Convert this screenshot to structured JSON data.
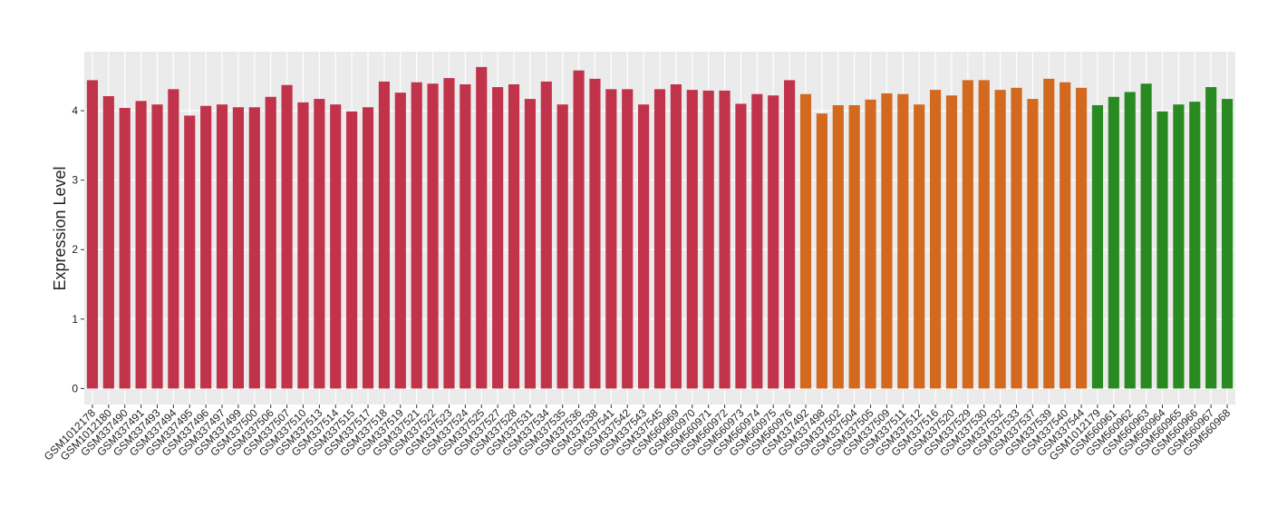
{
  "chart_data": {
    "type": "bar",
    "y_label": "Expression Level",
    "categories": [
      "GSM1012178",
      "GSM1012180",
      "GSM337490",
      "GSM337491",
      "GSM337493",
      "GSM337494",
      "GSM337495",
      "GSM337496",
      "GSM337497",
      "GSM337499",
      "GSM337500",
      "GSM337506",
      "GSM337507",
      "GSM337510",
      "GSM337513",
      "GSM337514",
      "GSM337515",
      "GSM337517",
      "GSM337518",
      "GSM337519",
      "GSM337521",
      "GSM337522",
      "GSM337523",
      "GSM337524",
      "GSM337525",
      "GSM337527",
      "GSM337528",
      "GSM337531",
      "GSM337534",
      "GSM337535",
      "GSM337536",
      "GSM337538",
      "GSM337541",
      "GSM337542",
      "GSM337543",
      "GSM337545",
      "GSM560969",
      "GSM560970",
      "GSM560971",
      "GSM560972",
      "GSM560973",
      "GSM560974",
      "GSM560975",
      "GSM560976",
      "GSM337492",
      "GSM337498",
      "GSM337502",
      "GSM337504",
      "GSM337505",
      "GSM337509",
      "GSM337511",
      "GSM337512",
      "GSM337516",
      "GSM337520",
      "GSM337529",
      "GSM337530",
      "GSM337532",
      "GSM337533",
      "GSM337537",
      "GSM337539",
      "GSM337540",
      "GSM337544",
      "GSM1012179",
      "GSM560961",
      "GSM560962",
      "GSM560963",
      "GSM560964",
      "GSM560965",
      "GSM560966",
      "GSM560967",
      "GSM560968"
    ],
    "values": [
      4.44,
      4.21,
      4.04,
      4.14,
      4.09,
      4.31,
      3.93,
      4.07,
      4.09,
      4.05,
      4.05,
      4.2,
      4.37,
      4.12,
      4.17,
      4.09,
      3.99,
      4.05,
      4.42,
      4.26,
      4.41,
      4.39,
      4.47,
      4.38,
      4.63,
      4.34,
      4.38,
      4.17,
      4.42,
      4.09,
      4.58,
      4.46,
      4.31,
      4.31,
      4.09,
      4.31,
      4.38,
      4.3,
      4.29,
      4.29,
      4.1,
      4.24,
      4.22,
      4.44,
      4.24,
      3.96,
      4.08,
      4.08,
      4.16,
      4.25,
      4.24,
      4.09,
      4.3,
      4.22,
      4.44,
      4.44,
      4.3,
      4.33,
      4.17,
      4.46,
      4.41,
      4.33,
      4.08,
      4.2,
      4.27,
      4.39,
      3.99,
      4.09,
      4.13,
      4.34,
      4.17
    ],
    "colors": [
      "#c1334b",
      "#c1334b",
      "#c1334b",
      "#c1334b",
      "#c1334b",
      "#c1334b",
      "#c1334b",
      "#c1334b",
      "#c1334b",
      "#c1334b",
      "#c1334b",
      "#c1334b",
      "#c1334b",
      "#c1334b",
      "#c1334b",
      "#c1334b",
      "#c1334b",
      "#c1334b",
      "#c1334b",
      "#c1334b",
      "#c1334b",
      "#c1334b",
      "#c1334b",
      "#c1334b",
      "#c1334b",
      "#c1334b",
      "#c1334b",
      "#c1334b",
      "#c1334b",
      "#c1334b",
      "#c1334b",
      "#c1334b",
      "#c1334b",
      "#c1334b",
      "#c1334b",
      "#c1334b",
      "#c1334b",
      "#c1334b",
      "#c1334b",
      "#c1334b",
      "#c1334b",
      "#c1334b",
      "#c1334b",
      "#c1334b",
      "#d2691e",
      "#d2691e",
      "#d2691e",
      "#d2691e",
      "#d2691e",
      "#d2691e",
      "#d2691e",
      "#d2691e",
      "#d2691e",
      "#d2691e",
      "#d2691e",
      "#d2691e",
      "#d2691e",
      "#d2691e",
      "#d2691e",
      "#d2691e",
      "#d2691e",
      "#d2691e",
      "#2a8a22",
      "#2a8a22",
      "#2a8a22",
      "#2a8a22",
      "#2a8a22",
      "#2a8a22",
      "#2a8a22",
      "#2a8a22",
      "#2a8a22"
    ],
    "ylim": [
      -0.23,
      4.85
    ],
    "yticks": [
      0,
      1,
      2,
      3,
      4
    ],
    "grid": true
  }
}
